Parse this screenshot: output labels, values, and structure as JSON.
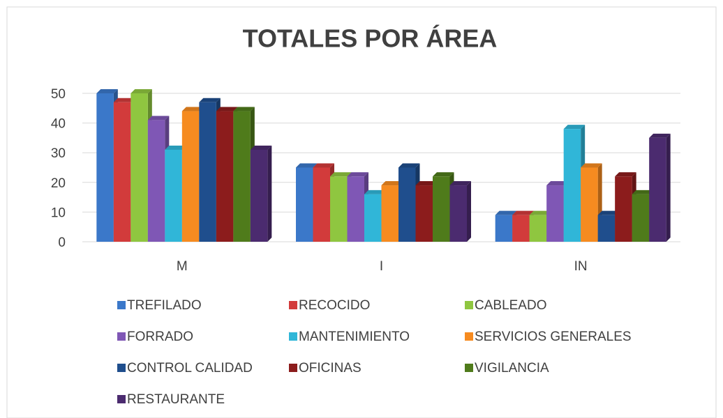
{
  "chart_data": {
    "type": "bar",
    "title": "TOTALES POR ÁREA",
    "categories": [
      "M",
      "I",
      "IN"
    ],
    "ylim": [
      0,
      50
    ],
    "yticks": [
      0,
      10,
      20,
      30,
      40,
      50
    ],
    "grid": true,
    "series": [
      {
        "name": "TREFILADO",
        "color": "#3b78c9",
        "values": [
          50,
          25,
          9
        ]
      },
      {
        "name": "RECOCIDO",
        "color": "#d23b3b",
        "values": [
          47,
          25,
          9
        ]
      },
      {
        "name": "CABLEADO",
        "color": "#8fc640",
        "values": [
          50,
          22,
          9
        ]
      },
      {
        "name": "FORRADO",
        "color": "#7f57b5",
        "values": [
          41,
          22,
          19
        ]
      },
      {
        "name": "MANTENIMIENTO",
        "color": "#30b6d8",
        "values": [
          31,
          16,
          38
        ]
      },
      {
        "name": "SERVICIOS GENERALES",
        "color": "#f68b20",
        "values": [
          44,
          19,
          25
        ]
      },
      {
        "name": "CONTROL CALIDAD",
        "color": "#1f4e8d",
        "values": [
          47,
          25,
          9
        ]
      },
      {
        "name": "OFICINAS",
        "color": "#8c1c1c",
        "values": [
          44,
          19,
          22
        ]
      },
      {
        "name": "VIGILANCIA",
        "color": "#4f7b1b",
        "values": [
          44,
          22,
          16
        ]
      },
      {
        "name": "RESTAURANTE",
        "color": "#4b2b6f",
        "values": [
          31,
          19,
          35
        ]
      }
    ]
  }
}
